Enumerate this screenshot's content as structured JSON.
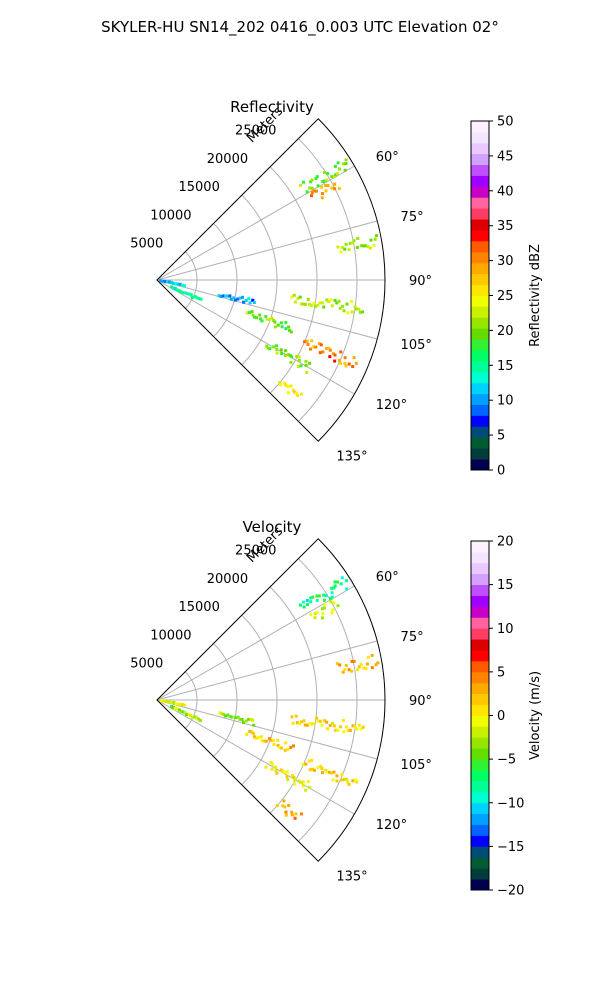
{
  "figure": {
    "suptitle": "SKYLER-HU  SN14_202  0416_0.003 UTC Elevation 02°"
  },
  "colors": {
    "grid": "#b0b0b0",
    "axis_edge": "#000000",
    "background": "#ffffff"
  },
  "chart_data": [
    {
      "type": "heatmap",
      "projection": "polar-sector",
      "title": "Reflectivity",
      "range_label": "Meters",
      "theta_range_deg": [
        45,
        135
      ],
      "theta_direction": "clockwise-from-north",
      "radial_ticks": [
        "5000",
        "10000",
        "15000",
        "20000",
        "25000"
      ],
      "radial_tick_values": [
        5000,
        10000,
        15000,
        20000,
        25000
      ],
      "rlim": [
        0,
        28500
      ],
      "angular_ticks": [
        "60°",
        "75°",
        "90°",
        "105°",
        "120°",
        "135°"
      ],
      "angular_tick_values": [
        60,
        75,
        90,
        105,
        120,
        135
      ],
      "grid": true,
      "colorbar": {
        "label": "Reflectivity dBZ",
        "range": [
          0,
          50
        ],
        "ticks": [
          "0",
          "5",
          "10",
          "15",
          "20",
          "25",
          "30",
          "35",
          "40",
          "45",
          "50"
        ],
        "tick_values": [
          0,
          5,
          10,
          15,
          20,
          25,
          30,
          35,
          40,
          45,
          50
        ],
        "colors": [
          "#000050",
          "#003c3c",
          "#005a32",
          "#004b78",
          "#0000ff",
          "#0064ff",
          "#00a0ff",
          "#00d2ff",
          "#00ffd2",
          "#00ff96",
          "#00ff64",
          "#32f032",
          "#64dc00",
          "#96e600",
          "#c8f000",
          "#f0ff00",
          "#ffe600",
          "#ffc800",
          "#ffaa00",
          "#ff8200",
          "#ff5a00",
          "#ff0000",
          "#dc0000",
          "#ff3c64",
          "#ff64a0",
          "#c800c8",
          "#a000ff",
          "#be50ff",
          "#d2a0ff",
          "#ebc8ff",
          "#f5e6ff",
          "#fff0ff"
        ]
      },
      "echo_features": [
        {
          "theta_deg": 58,
          "r_from": 21500,
          "r_to": 28000,
          "value": 20
        },
        {
          "theta_deg": 62,
          "r_from": 22000,
          "r_to": 25500,
          "value": 30
        },
        {
          "theta_deg": 80,
          "r_from": 23000,
          "r_to": 28000,
          "value": 22
        },
        {
          "theta_deg": 98,
          "r_from": 17000,
          "r_to": 26000,
          "value": 22
        },
        {
          "theta_deg": 103,
          "r_from": 8000,
          "r_to": 12500,
          "value": 10
        },
        {
          "theta_deg": 110,
          "r_from": 12000,
          "r_to": 18000,
          "value": 20
        },
        {
          "theta_deg": 113,
          "r_from": 20000,
          "r_to": 27000,
          "value": 30
        },
        {
          "theta_deg": 120,
          "r_from": 16000,
          "r_to": 22000,
          "value": 20
        },
        {
          "theta_deg": 130,
          "r_from": 20000,
          "r_to": 23000,
          "value": 25
        },
        {
          "theta_deg": 100,
          "r_from": 500,
          "r_to": 3500,
          "value": 12
        },
        {
          "theta_deg": 115,
          "r_from": 2000,
          "r_to": 6000,
          "value": 15
        }
      ]
    },
    {
      "type": "heatmap",
      "projection": "polar-sector",
      "title": "Velocity",
      "range_label": "Meters",
      "theta_range_deg": [
        45,
        135
      ],
      "theta_direction": "clockwise-from-north",
      "radial_ticks": [
        "5000",
        "10000",
        "15000",
        "20000",
        "25000"
      ],
      "radial_tick_values": [
        5000,
        10000,
        15000,
        20000,
        25000
      ],
      "rlim": [
        0,
        28500
      ],
      "angular_ticks": [
        "60°",
        "75°",
        "90°",
        "105°",
        "120°",
        "135°"
      ],
      "angular_tick_values": [
        60,
        75,
        90,
        105,
        120,
        135
      ],
      "grid": true,
      "colorbar": {
        "label": "Velocity (m/s)",
        "range": [
          -20,
          20
        ],
        "ticks": [
          "−20",
          "−15",
          "−10",
          "−5",
          "0",
          "5",
          "10",
          "15",
          "20"
        ],
        "tick_values": [
          -20,
          -15,
          -10,
          -5,
          0,
          5,
          10,
          15,
          20
        ],
        "colors": [
          "#000050",
          "#003c3c",
          "#005a32",
          "#004b78",
          "#0000ff",
          "#0064ff",
          "#00a0ff",
          "#00d2ff",
          "#00ffd2",
          "#00ff96",
          "#00ff64",
          "#32f032",
          "#64dc00",
          "#96e600",
          "#c8f000",
          "#f0ff00",
          "#ffe600",
          "#ffc800",
          "#ffaa00",
          "#ff8200",
          "#ff5a00",
          "#ff0000",
          "#dc0000",
          "#ff3c64",
          "#ff64a0",
          "#c800c8",
          "#a000ff",
          "#be50ff",
          "#d2a0ff",
          "#ebc8ff",
          "#f5e6ff",
          "#fff0ff"
        ]
      },
      "echo_features": [
        {
          "theta_deg": 58,
          "r_from": 21500,
          "r_to": 28000,
          "value": -8
        },
        {
          "theta_deg": 62,
          "r_from": 22000,
          "r_to": 25500,
          "value": -2
        },
        {
          "theta_deg": 80,
          "r_from": 23000,
          "r_to": 28000,
          "value": 2
        },
        {
          "theta_deg": 98,
          "r_from": 17000,
          "r_to": 26000,
          "value": 1
        },
        {
          "theta_deg": 103,
          "r_from": 8000,
          "r_to": 12500,
          "value": -3
        },
        {
          "theta_deg": 110,
          "r_from": 12000,
          "r_to": 18000,
          "value": 2
        },
        {
          "theta_deg": 113,
          "r_from": 20000,
          "r_to": 27000,
          "value": 1
        },
        {
          "theta_deg": 120,
          "r_from": 16000,
          "r_to": 22000,
          "value": 0
        },
        {
          "theta_deg": 130,
          "r_from": 20000,
          "r_to": 23000,
          "value": 3
        },
        {
          "theta_deg": 100,
          "r_from": 500,
          "r_to": 3500,
          "value": -1
        },
        {
          "theta_deg": 115,
          "r_from": 2000,
          "r_to": 6000,
          "value": -3
        }
      ]
    }
  ]
}
